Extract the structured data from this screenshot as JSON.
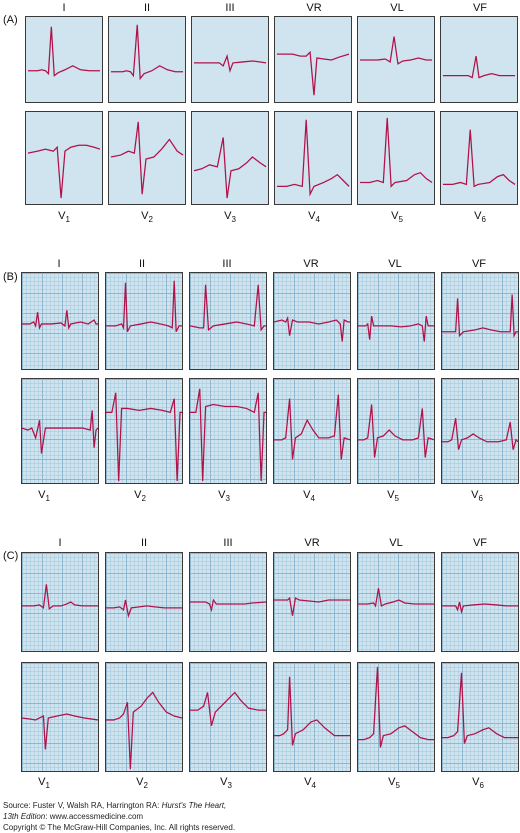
{
  "sections": [
    {
      "label": "(A)",
      "limb_leads": [
        "I",
        "II",
        "III",
        "VR",
        "VL",
        "VF"
      ],
      "chest_leads": [
        {
          "base": "V",
          "sub": "1"
        },
        {
          "base": "V",
          "sub": "2"
        },
        {
          "base": "V",
          "sub": "3"
        },
        {
          "base": "V",
          "sub": "4"
        },
        {
          "base": "V",
          "sub": "5"
        },
        {
          "base": "V",
          "sub": "6"
        }
      ]
    },
    {
      "label": "(B)",
      "limb_leads": [
        "I",
        "II",
        "III",
        "VR",
        "VL",
        "VF"
      ],
      "chest_leads": [
        {
          "base": "V",
          "sub": "1"
        },
        {
          "base": "V",
          "sub": "2"
        },
        {
          "base": "V",
          "sub": "3"
        },
        {
          "base": "V",
          "sub": "4"
        },
        {
          "base": "V",
          "sub": "5"
        },
        {
          "base": "V",
          "sub": "6"
        }
      ]
    },
    {
      "label": "(C)",
      "limb_leads": [
        "I",
        "II",
        "III",
        "VR",
        "VL",
        "VF"
      ],
      "chest_leads": [
        {
          "base": "V",
          "sub": "1"
        },
        {
          "base": "V",
          "sub": "2"
        },
        {
          "base": "V",
          "sub": "3"
        },
        {
          "base": "V",
          "sub": "4"
        },
        {
          "base": "V",
          "sub": "5"
        },
        {
          "base": "V",
          "sub": "6"
        }
      ]
    }
  ],
  "footer": {
    "source_prefix": "Source: Fuster V, Walsh RA, Harrington RA: ",
    "source_title": "Hurst's The Heart,",
    "edition": "13th Edition",
    "website": ": www.accessmedicine.com",
    "copyright": "Copyright © The McGraw-Hill Companies, Inc. All rights reserved."
  },
  "colors": {
    "trace": "#b0134a",
    "grid_major": "#8fb8d0",
    "grid_minor": "#b6d3e3",
    "panel_bg": "#cfe3ef"
  }
}
